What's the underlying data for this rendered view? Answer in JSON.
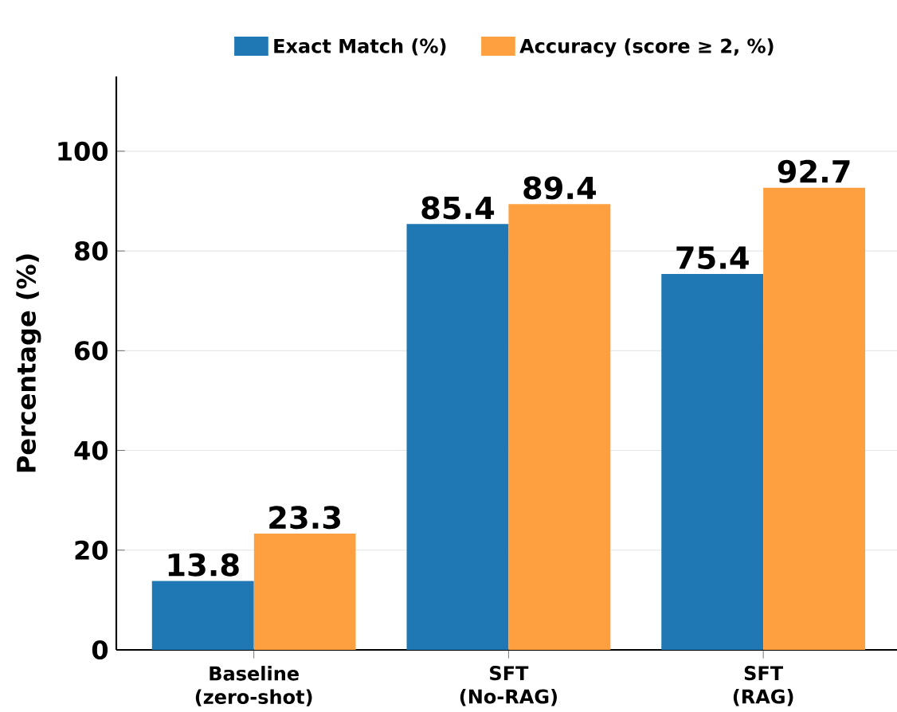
{
  "chart_data": {
    "type": "bar",
    "ylabel": "Percentage (%)",
    "categories": [
      "Baseline (zero-shot)",
      "SFT (No-RAG)",
      "SFT (RAG)"
    ],
    "series": [
      {
        "name": "Exact Match (%)",
        "color": "#1f77b4",
        "values": [
          13.8,
          85.4,
          75.4
        ]
      },
      {
        "name": "Accuracy (score ≥ 2, %)",
        "color": "#ffa040",
        "values": [
          23.3,
          89.4,
          92.7
        ]
      }
    ],
    "ylim": [
      0,
      115
    ],
    "yticks": [
      0,
      20,
      40,
      60,
      80,
      100
    ],
    "grid": "y",
    "legend": "top",
    "data_labels": true
  }
}
